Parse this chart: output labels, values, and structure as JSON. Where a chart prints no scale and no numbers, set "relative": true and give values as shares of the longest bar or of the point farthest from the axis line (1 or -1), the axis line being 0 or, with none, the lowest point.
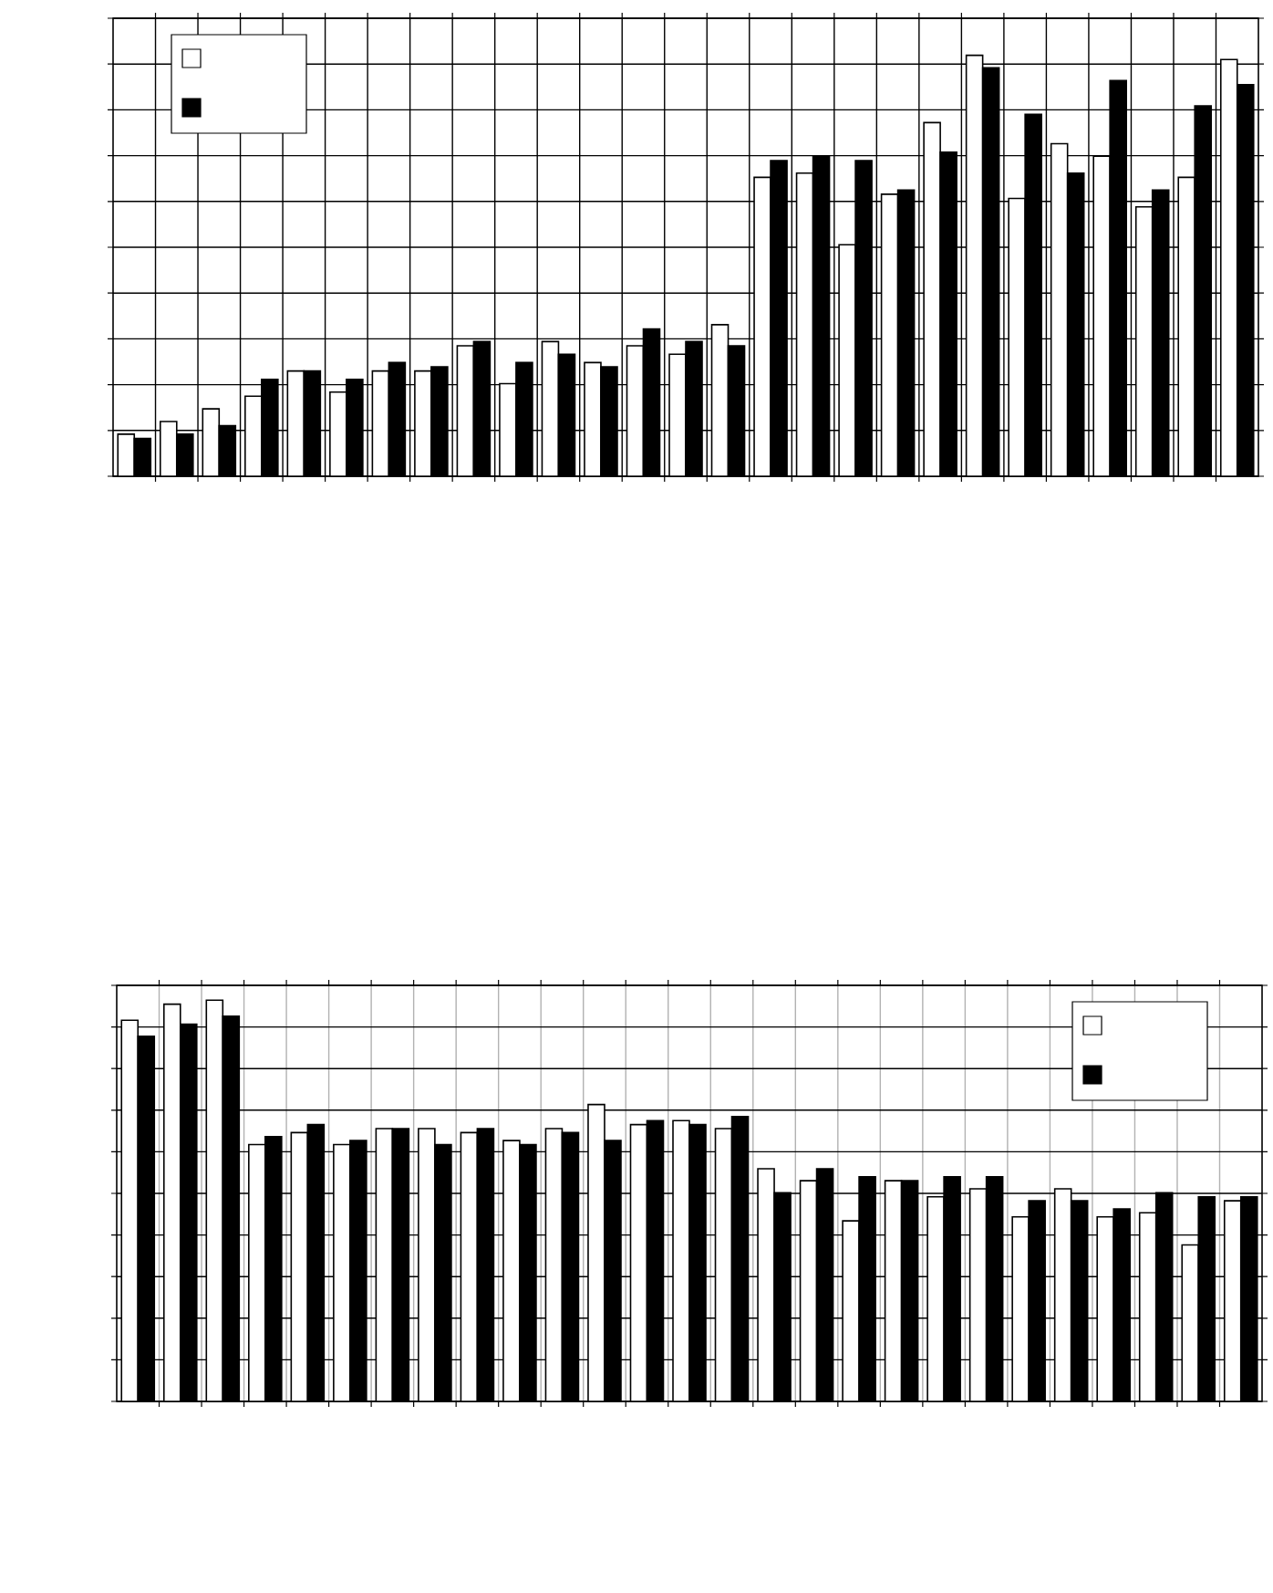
{
  "chart_data": [
    {
      "type": "bar",
      "relative": true,
      "grid": true,
      "tick_labels": false,
      "categories": [
        null,
        null,
        null,
        null,
        null,
        null,
        null,
        null,
        null,
        null,
        null,
        null,
        null,
        null,
        null,
        null,
        null,
        null,
        null,
        null,
        null,
        null,
        null,
        null,
        null,
        null,
        null
      ],
      "series": [
        {
          "color": "#ffffff",
          "values": [
            0.1,
            0.13,
            0.16,
            0.19,
            0.25,
            0.2,
            0.25,
            0.25,
            0.31,
            0.22,
            0.32,
            0.27,
            0.31,
            0.29,
            0.36,
            0.71,
            0.72,
            0.55,
            0.67,
            0.84,
            1.0,
            0.66,
            0.79,
            0.76,
            0.64,
            0.71,
            0.99
          ]
        },
        {
          "color": "#000000",
          "values": [
            0.09,
            0.1,
            0.12,
            0.23,
            0.25,
            0.23,
            0.27,
            0.26,
            0.32,
            0.27,
            0.29,
            0.26,
            0.35,
            0.32,
            0.31,
            0.75,
            0.76,
            0.75,
            0.68,
            0.77,
            0.97,
            0.86,
            0.72,
            0.94,
            0.68,
            0.88,
            0.93
          ]
        }
      ]
    },
    {
      "type": "bar",
      "relative": true,
      "grid": true,
      "tick_labels": false,
      "categories": [
        null,
        null,
        null,
        null,
        null,
        null,
        null,
        null,
        null,
        null,
        null,
        null,
        null,
        null,
        null,
        null,
        null,
        null,
        null,
        null,
        null,
        null,
        null,
        null,
        null,
        null,
        null
      ],
      "series": [
        {
          "color": "#ffffff",
          "values": [
            0.95,
            0.99,
            1.0,
            0.64,
            0.67,
            0.64,
            0.68,
            0.68,
            0.67,
            0.65,
            0.68,
            0.74,
            0.69,
            0.7,
            0.68,
            0.58,
            0.55,
            0.45,
            0.55,
            0.51,
            0.53,
            0.46,
            0.53,
            0.46,
            0.47,
            0.39,
            0.5
          ]
        },
        {
          "color": "#000000",
          "values": [
            0.91,
            0.94,
            0.96,
            0.66,
            0.69,
            0.65,
            0.68,
            0.64,
            0.68,
            0.64,
            0.67,
            0.65,
            0.7,
            0.69,
            0.71,
            0.52,
            0.58,
            0.56,
            0.55,
            0.56,
            0.56,
            0.5,
            0.5,
            0.48,
            0.52,
            0.51,
            0.51
          ]
        }
      ]
    }
  ]
}
